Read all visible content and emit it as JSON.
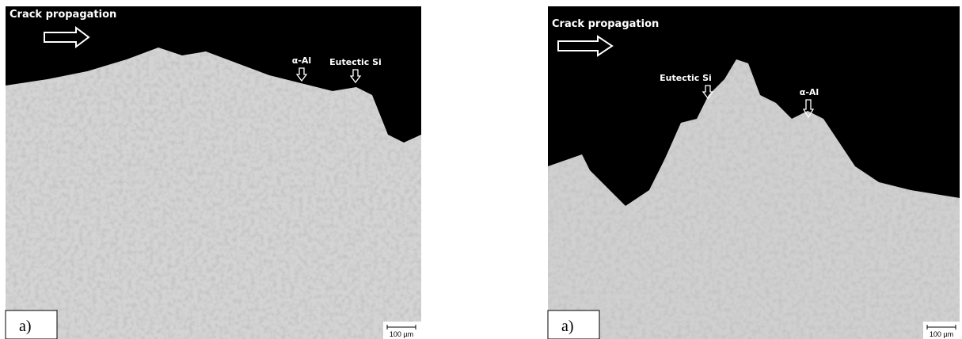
{
  "panels": [
    {
      "crack_label": "Crack propagation",
      "phase_labels": [
        "α-Al",
        "Eutectic Si"
      ],
      "panel_label": "a)",
      "scale_bar": "100 µm"
    },
    {
      "crack_label": "Crack propagation",
      "phase_labels": [
        "Eutectic Si",
        "α-Al"
      ],
      "panel_label": "a)",
      "scale_bar": "100 µm"
    }
  ]
}
